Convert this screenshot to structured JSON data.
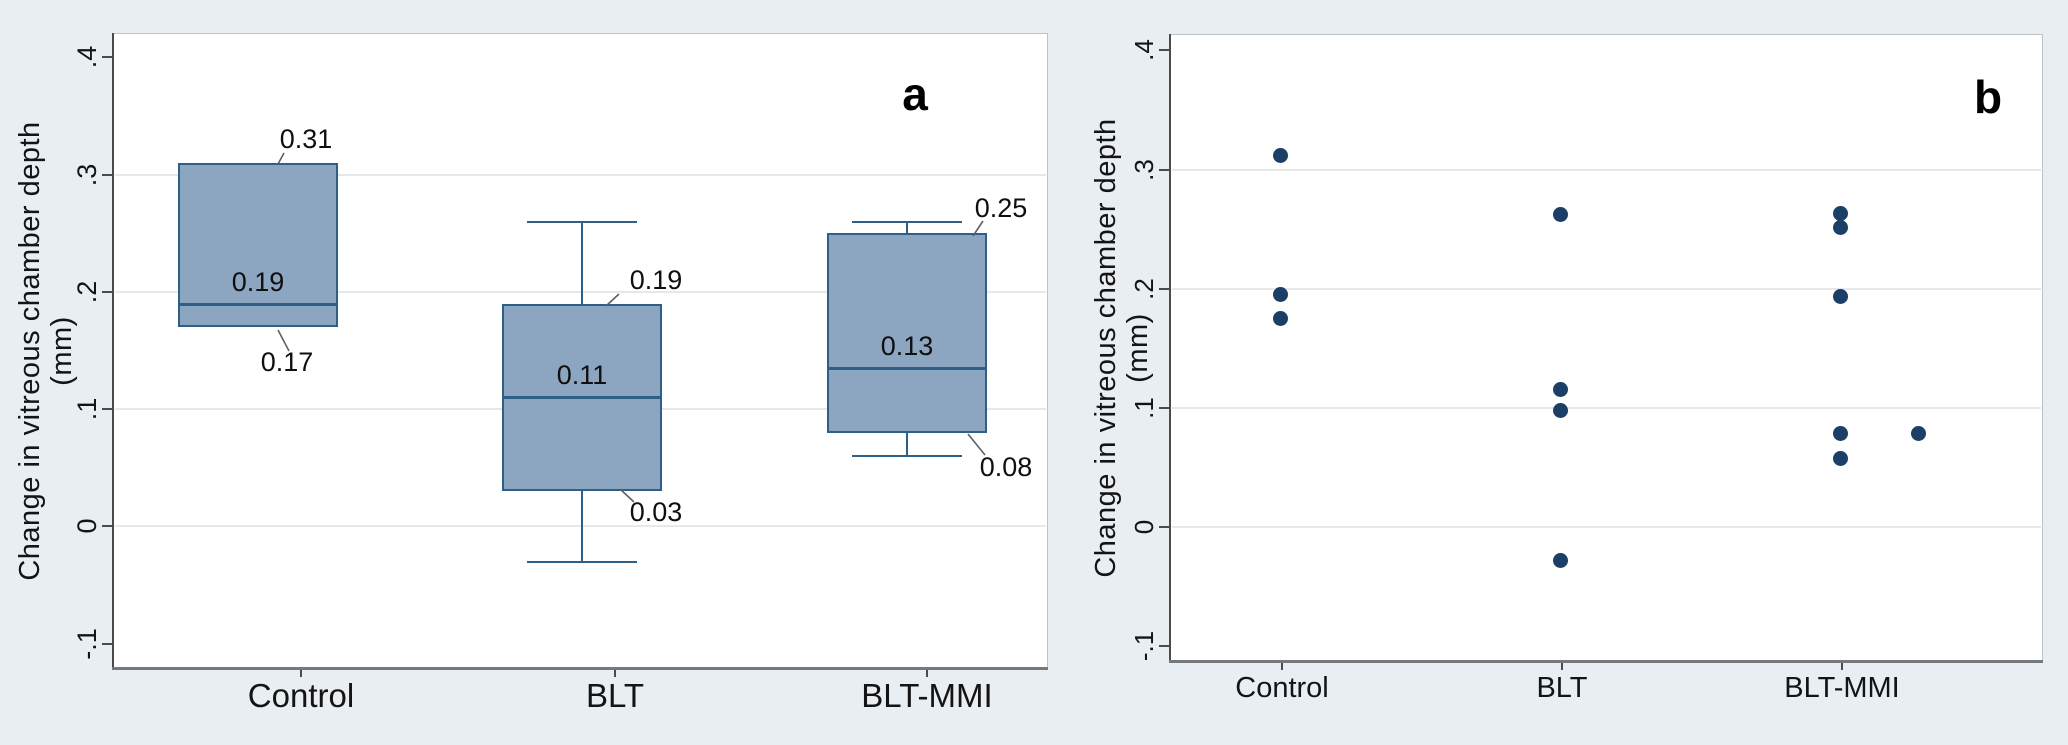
{
  "chart_data": [
    {
      "panel": "a",
      "type": "box",
      "ylabel": "Change in vitreous chamber depth (mm)",
      "categories": [
        "Control",
        "BLT",
        "BLT-MMI"
      ],
      "yticks": [
        {
          "label": ".4",
          "value": 0.4,
          "grid": false
        },
        {
          "label": ".3",
          "value": 0.3,
          "grid": true
        },
        {
          "label": ".2",
          "value": 0.2,
          "grid": true
        },
        {
          "label": ".1",
          "value": 0.1,
          "grid": true
        },
        {
          "label": "0",
          "value": 0.0,
          "grid": true
        },
        {
          "label": "-.1",
          "value": -0.1,
          "grid": false
        }
      ],
      "ylim": [
        -0.12,
        0.42
      ],
      "boxes": [
        {
          "group": "Control",
          "q1": 0.17,
          "median": 0.19,
          "q3": 0.31,
          "whisker_low": null,
          "whisker_high": null,
          "labels": {
            "q1": "0.17",
            "median": "0.19",
            "q3": "0.31"
          }
        },
        {
          "group": "BLT",
          "q1": 0.03,
          "median": 0.11,
          "q3": 0.19,
          "whisker_low": -0.03,
          "whisker_high": 0.26,
          "labels": {
            "q1": "0.03",
            "median": "0.11",
            "q3": "0.19"
          }
        },
        {
          "group": "BLT-MMI",
          "q1": 0.08,
          "median": 0.135,
          "q3": 0.25,
          "whisker_low": 0.06,
          "whisker_high": 0.26,
          "labels": {
            "q1": "0.08",
            "median": "0.13",
            "q3": "0.25"
          }
        }
      ]
    },
    {
      "panel": "b",
      "type": "scatter",
      "ylabel": "Change in vitreous chamber depth (mm)",
      "categories": [
        "Control",
        "BLT",
        "BLT-MMI"
      ],
      "yticks": [
        {
          "label": ".4",
          "value": 0.4,
          "grid": false
        },
        {
          "label": ".3",
          "value": 0.3,
          "grid": true
        },
        {
          "label": ".2",
          "value": 0.2,
          "grid": true
        },
        {
          "label": ".1",
          "value": 0.1,
          "grid": true
        },
        {
          "label": "0",
          "value": 0.0,
          "grid": true
        },
        {
          "label": "-.1",
          "value": -0.1,
          "grid": false
        }
      ],
      "ylim": [
        -0.112,
        0.413
      ],
      "points": [
        {
          "group": 0,
          "value": 0.312,
          "jitter": 0
        },
        {
          "group": 0,
          "value": 0.195,
          "jitter": 0
        },
        {
          "group": 0,
          "value": 0.175,
          "jitter": 0
        },
        {
          "group": 1,
          "value": 0.262,
          "jitter": 0
        },
        {
          "group": 1,
          "value": 0.115,
          "jitter": 0
        },
        {
          "group": 1,
          "value": 0.098,
          "jitter": 0
        },
        {
          "group": 1,
          "value": -0.028,
          "jitter": 0
        },
        {
          "group": 2,
          "value": 0.263,
          "jitter": 0
        },
        {
          "group": 2,
          "value": 0.251,
          "jitter": 0
        },
        {
          "group": 2,
          "value": 0.193,
          "jitter": 0
        },
        {
          "group": 2,
          "value": 0.078,
          "jitter": 0
        },
        {
          "group": 2,
          "value": 0.078,
          "jitter": 78
        },
        {
          "group": 2,
          "value": 0.057,
          "jitter": 0
        }
      ]
    }
  ],
  "colors": {
    "background": "#e9eef2",
    "plot_background": "#ffffff",
    "box_fill": "#8ca6c1",
    "box_border": "#2d5f87",
    "point": "#1b3f66",
    "gridline": "#e7e8ea",
    "axis": "#4a4a4a",
    "axis_bottom": "#75797d",
    "frame": "#bcc2c6",
    "leader": "#606060",
    "text": "#141414"
  }
}
